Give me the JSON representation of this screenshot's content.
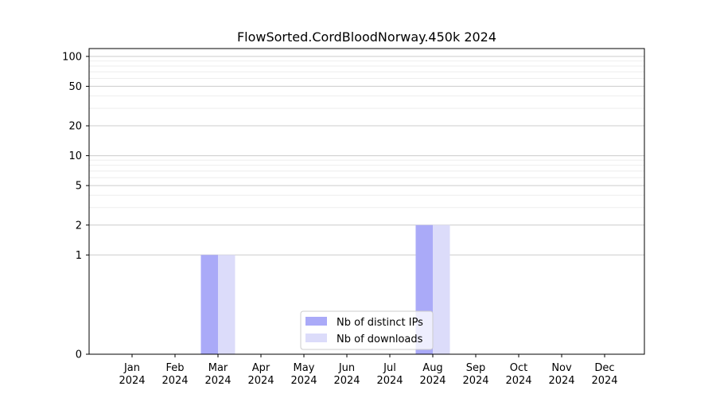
{
  "chart_data": {
    "type": "bar",
    "title": "FlowSorted.CordBloodNorway.450k 2024",
    "xlabel": "",
    "ylabel": "",
    "y_scale": "symlog",
    "ylim": [
      0,
      120
    ],
    "y_ticks": [
      0,
      1,
      2,
      5,
      10,
      20,
      50,
      100
    ],
    "y_tick_labels": [
      "0",
      "1",
      "2",
      "5",
      "10",
      "20",
      "50",
      "100"
    ],
    "categories": [
      [
        "Jan",
        "2024"
      ],
      [
        "Feb",
        "2024"
      ],
      [
        "Mar",
        "2024"
      ],
      [
        "Apr",
        "2024"
      ],
      [
        "May",
        "2024"
      ],
      [
        "Jun",
        "2024"
      ],
      [
        "Jul",
        "2024"
      ],
      [
        "Aug",
        "2024"
      ],
      [
        "Sep",
        "2024"
      ],
      [
        "Oct",
        "2024"
      ],
      [
        "Nov",
        "2024"
      ],
      [
        "Dec",
        "2024"
      ]
    ],
    "series": [
      {
        "name": "Nb of distinct IPs",
        "color": "#aaaaf8",
        "values": [
          0,
          0,
          1,
          0,
          0,
          0,
          0,
          2,
          0,
          0,
          0,
          0
        ]
      },
      {
        "name": "Nb of downloads",
        "color": "#dcdcfa",
        "values": [
          0,
          0,
          1,
          0,
          0,
          0,
          0,
          2,
          0,
          0,
          0,
          0
        ]
      }
    ],
    "grid": true,
    "legend_position": "bottom-center"
  }
}
